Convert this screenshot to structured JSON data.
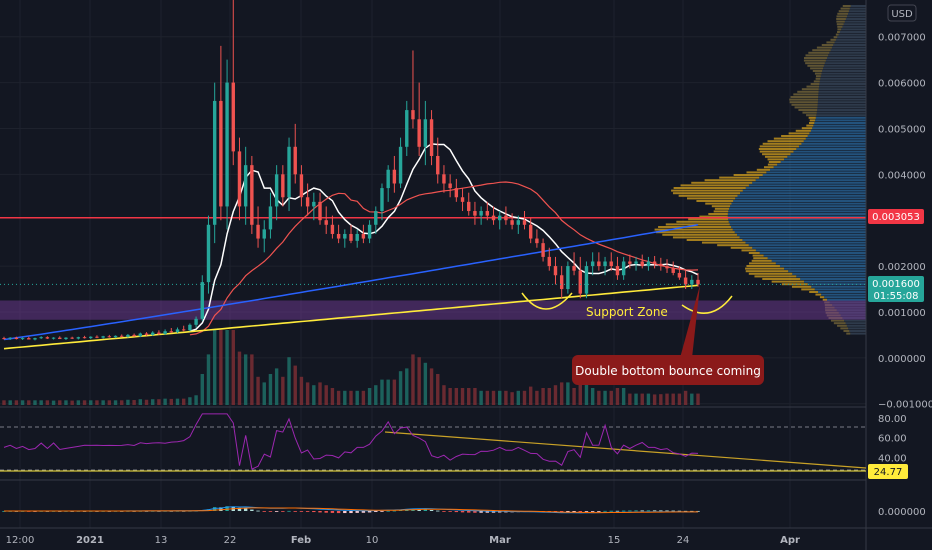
{
  "chart_data": [
    {
      "type": "candlestick",
      "panel": "price",
      "currency_badge": "USD",
      "y_ticks": [
        "0.007000",
        "0.006000",
        "0.005000",
        "0.004000",
        "0.002000",
        "0.001000",
        "0.000000",
        "−0.001000"
      ],
      "x_ticks": [
        "12:00",
        "2021",
        "13",
        "22",
        "Feb",
        "10",
        "Mar",
        "15",
        "24",
        "Apr"
      ],
      "ylim": [
        -0.00105,
        0.0078
      ],
      "resistance_line": {
        "value": 0.003053,
        "label": "0.003053",
        "color": "#f23645"
      },
      "last_price": {
        "value": 0.0016,
        "label": "0.001600",
        "countdown": "01:55:08",
        "color": "#26a69a"
      },
      "support_zone": {
        "from": 0.00083,
        "to": 0.00125,
        "label": "Support Zone",
        "color": "#7b3fa0"
      },
      "callout": {
        "text": "Double bottom bounce coming",
        "color": "#8b1a1a"
      },
      "overlays": [
        {
          "kind": "white-ma",
          "color": "#ffffff"
        },
        {
          "kind": "red-ma",
          "color": "#ef5350"
        },
        {
          "kind": "blue-ma",
          "color": "#2962ff"
        },
        {
          "kind": "yellow-ma",
          "color": "#ffeb3b"
        }
      ],
      "candles_ohlc": [
        [
          0.00043,
          0.00046,
          0.0004,
          0.00042
        ],
        [
          0.00042,
          0.00045,
          0.00039,
          0.00044
        ],
        [
          0.00044,
          0.00046,
          0.0004,
          0.00041
        ],
        [
          0.00041,
          0.00045,
          0.00039,
          0.00043
        ],
        [
          0.00043,
          0.00046,
          0.0004,
          0.0004
        ],
        [
          0.0004,
          0.00044,
          0.00038,
          0.00043
        ],
        [
          0.00043,
          0.00047,
          0.00041,
          0.00045
        ],
        [
          0.00045,
          0.00047,
          0.00041,
          0.00042
        ],
        [
          0.00042,
          0.00045,
          0.0004,
          0.00044
        ],
        [
          0.00044,
          0.00047,
          0.00041,
          0.00041
        ],
        [
          0.00041,
          0.00045,
          0.00039,
          0.00044
        ],
        [
          0.00044,
          0.00046,
          0.00041,
          0.00042
        ],
        [
          0.00042,
          0.00046,
          0.0004,
          0.00045
        ],
        [
          0.00045,
          0.00048,
          0.00042,
          0.00043
        ],
        [
          0.00043,
          0.00047,
          0.00041,
          0.00046
        ],
        [
          0.00046,
          0.00049,
          0.00043,
          0.00044
        ],
        [
          0.00044,
          0.00048,
          0.00042,
          0.00047
        ],
        [
          0.00047,
          0.0005,
          0.00044,
          0.00045
        ],
        [
          0.00045,
          0.00049,
          0.00043,
          0.00048
        ],
        [
          0.00048,
          0.00051,
          0.00045,
          0.00046
        ],
        [
          0.00046,
          0.00052,
          0.00044,
          0.0005
        ],
        [
          0.0005,
          0.00053,
          0.00046,
          0.00047
        ],
        [
          0.00047,
          0.00055,
          0.00045,
          0.00053
        ],
        [
          0.00053,
          0.00056,
          0.00048,
          0.0005
        ],
        [
          0.0005,
          0.00058,
          0.00048,
          0.00055
        ],
        [
          0.00055,
          0.0006,
          0.0005,
          0.00052
        ],
        [
          0.00052,
          0.00062,
          0.0005,
          0.00058
        ],
        [
          0.00058,
          0.00065,
          0.00054,
          0.00056
        ],
        [
          0.00056,
          0.00066,
          0.00054,
          0.00062
        ],
        [
          0.00062,
          0.0007,
          0.00058,
          0.0006
        ],
        [
          0.0006,
          0.00075,
          0.00058,
          0.00072
        ],
        [
          0.00072,
          0.0009,
          0.00066,
          0.00085
        ],
        [
          0.00085,
          0.0018,
          0.0008,
          0.00165
        ],
        [
          0.00165,
          0.0031,
          0.0014,
          0.0029
        ],
        [
          0.0029,
          0.006,
          0.0025,
          0.0056
        ],
        [
          0.0056,
          0.0068,
          0.003,
          0.0033
        ],
        [
          0.0033,
          0.0065,
          0.0028,
          0.006
        ],
        [
          0.006,
          0.0078,
          0.0042,
          0.0045
        ],
        [
          0.0045,
          0.0048,
          0.003,
          0.0033
        ],
        [
          0.0033,
          0.0046,
          0.0029,
          0.0042
        ],
        [
          0.0042,
          0.0044,
          0.0027,
          0.0029
        ],
        [
          0.0029,
          0.0033,
          0.0024,
          0.0026
        ],
        [
          0.0026,
          0.003,
          0.0023,
          0.0028
        ],
        [
          0.0028,
          0.0036,
          0.0026,
          0.0033
        ],
        [
          0.0033,
          0.0042,
          0.003,
          0.004
        ],
        [
          0.004,
          0.0042,
          0.0033,
          0.0035
        ],
        [
          0.0035,
          0.0048,
          0.0032,
          0.0046
        ],
        [
          0.0046,
          0.0051,
          0.0038,
          0.004
        ],
        [
          0.004,
          0.0042,
          0.0033,
          0.0035
        ],
        [
          0.0035,
          0.0038,
          0.0031,
          0.0033
        ],
        [
          0.0033,
          0.0036,
          0.003,
          0.0034
        ],
        [
          0.0034,
          0.0036,
          0.0029,
          0.003
        ],
        [
          0.003,
          0.0033,
          0.0027,
          0.0029
        ],
        [
          0.0029,
          0.0031,
          0.0026,
          0.0027
        ],
        [
          0.0027,
          0.0029,
          0.0025,
          0.0026
        ],
        [
          0.0026,
          0.0028,
          0.0024,
          0.0027
        ],
        [
          0.0027,
          0.0029,
          0.0025,
          0.00255
        ],
        [
          0.00255,
          0.0028,
          0.0024,
          0.0027
        ],
        [
          0.0027,
          0.0029,
          0.0025,
          0.0026
        ],
        [
          0.0026,
          0.003,
          0.0025,
          0.0029
        ],
        [
          0.0029,
          0.0033,
          0.0027,
          0.0032
        ],
        [
          0.0032,
          0.0038,
          0.003,
          0.0037
        ],
        [
          0.0037,
          0.0042,
          0.0034,
          0.0041
        ],
        [
          0.0041,
          0.0044,
          0.0036,
          0.0038
        ],
        [
          0.0038,
          0.0048,
          0.0037,
          0.0046
        ],
        [
          0.0046,
          0.0056,
          0.0044,
          0.0054
        ],
        [
          0.0054,
          0.0067,
          0.005,
          0.0052
        ],
        [
          0.0052,
          0.006,
          0.0044,
          0.0046
        ],
        [
          0.0046,
          0.0056,
          0.0042,
          0.0052
        ],
        [
          0.0052,
          0.0054,
          0.0042,
          0.0044
        ],
        [
          0.0044,
          0.0048,
          0.0038,
          0.004
        ],
        [
          0.004,
          0.0042,
          0.0036,
          0.0038
        ],
        [
          0.0038,
          0.004,
          0.0035,
          0.0037
        ],
        [
          0.0037,
          0.0039,
          0.0034,
          0.0035
        ],
        [
          0.0035,
          0.0037,
          0.0032,
          0.0034
        ],
        [
          0.0034,
          0.0036,
          0.0031,
          0.0032
        ],
        [
          0.0032,
          0.0034,
          0.0029,
          0.0031
        ],
        [
          0.0031,
          0.0033,
          0.0029,
          0.0032
        ],
        [
          0.0032,
          0.0034,
          0.003,
          0.0031
        ],
        [
          0.0031,
          0.0033,
          0.0029,
          0.003
        ],
        [
          0.003,
          0.0032,
          0.0028,
          0.0031
        ],
        [
          0.0031,
          0.0033,
          0.0029,
          0.003
        ],
        [
          0.003,
          0.00315,
          0.0028,
          0.0029
        ],
        [
          0.0029,
          0.0031,
          0.0027,
          0.003
        ],
        [
          0.003,
          0.0032,
          0.0028,
          0.0029
        ],
        [
          0.0029,
          0.00305,
          0.0025,
          0.0026
        ],
        [
          0.0026,
          0.0028,
          0.0024,
          0.0025
        ],
        [
          0.0025,
          0.0026,
          0.0021,
          0.0022
        ],
        [
          0.0022,
          0.0024,
          0.0019,
          0.002
        ],
        [
          0.002,
          0.0022,
          0.0016,
          0.0018
        ],
        [
          0.0018,
          0.002,
          0.0013,
          0.0015
        ],
        [
          0.0015,
          0.0021,
          0.0014,
          0.002
        ],
        [
          0.002,
          0.0023,
          0.0018,
          0.0019
        ],
        [
          0.0019,
          0.0022,
          0.0013,
          0.0014
        ],
        [
          0.0014,
          0.0021,
          0.0013,
          0.002
        ],
        [
          0.002,
          0.0023,
          0.0018,
          0.0021
        ],
        [
          0.0021,
          0.0023,
          0.0019,
          0.002
        ],
        [
          0.002,
          0.0022,
          0.0018,
          0.0021
        ],
        [
          0.0021,
          0.0023,
          0.0019,
          0.002
        ],
        [
          0.002,
          0.0022,
          0.0017,
          0.0018
        ],
        [
          0.0018,
          0.0022,
          0.0017,
          0.0021
        ],
        [
          0.0021,
          0.00225,
          0.00195,
          0.00205
        ],
        [
          0.00205,
          0.0022,
          0.0019,
          0.0021
        ],
        [
          0.0021,
          0.00225,
          0.00195,
          0.002
        ],
        [
          0.002,
          0.0022,
          0.0019,
          0.0021
        ],
        [
          0.0021,
          0.00222,
          0.00195,
          0.00205
        ],
        [
          0.00205,
          0.00218,
          0.0019,
          0.002
        ],
        [
          0.002,
          0.00215,
          0.00185,
          0.00195
        ],
        [
          0.00195,
          0.0021,
          0.0018,
          0.00185
        ],
        [
          0.00185,
          0.002,
          0.0017,
          0.00175
        ],
        [
          0.00175,
          0.0019,
          0.0015,
          0.0016
        ],
        [
          0.0016,
          0.0018,
          0.0015,
          0.0017
        ],
        [
          0.0017,
          0.00185,
          0.00155,
          0.0016
        ]
      ]
    },
    {
      "type": "line",
      "panel": "rsi",
      "y_ticks": [
        "80.00",
        "60.00",
        "40.00"
      ],
      "last_value": {
        "value": 24.77,
        "label": "24.77",
        "color": "#ffeb3b"
      },
      "ylim": [
        18,
        90
      ],
      "bands": [
        80,
        30
      ]
    },
    {
      "type": "histogram",
      "panel": "macd",
      "y_ticks": [
        "0.000000"
      ]
    }
  ]
}
